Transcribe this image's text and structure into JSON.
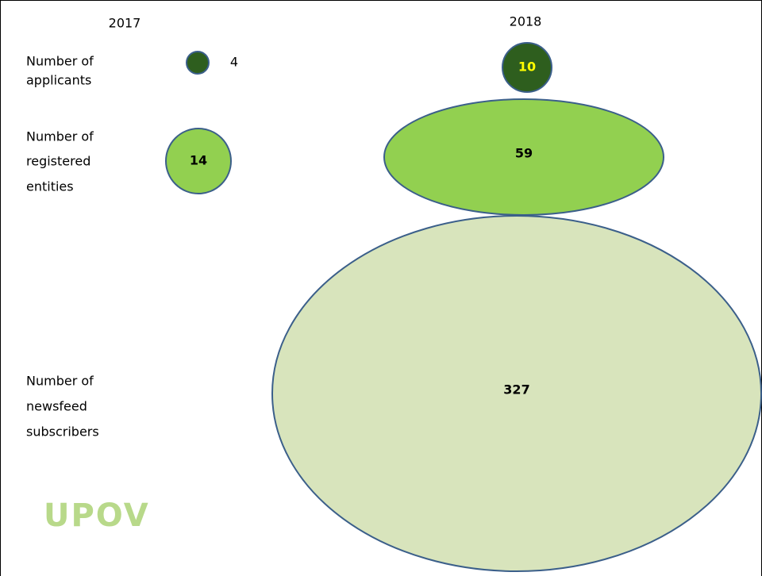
{
  "columns": [
    "2017",
    "2018"
  ],
  "rows": [
    {
      "label": [
        "Number of",
        "applicants"
      ],
      "values": [
        4,
        10
      ]
    },
    {
      "label": [
        "Number of",
        "registered",
        "entities"
      ],
      "values": [
        14,
        59
      ]
    },
    {
      "label": [
        "Number of",
        "newsfeed",
        "subscribers"
      ],
      "values": [
        327
      ]
    }
  ],
  "logo": "UPOV"
}
